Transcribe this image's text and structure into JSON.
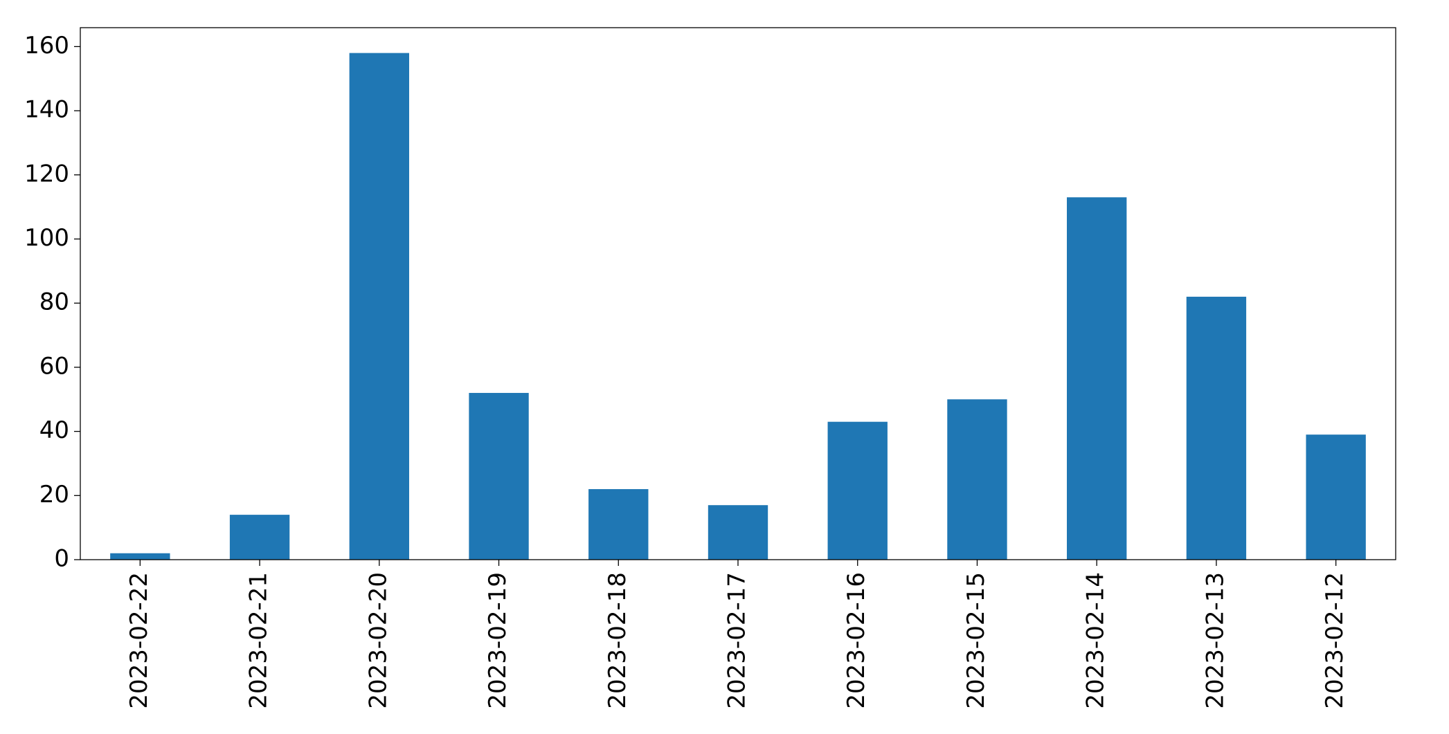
{
  "chart_data": {
    "type": "bar",
    "categories": [
      "2023-02-22",
      "2023-02-21",
      "2023-02-20",
      "2023-02-19",
      "2023-02-18",
      "2023-02-17",
      "2023-02-16",
      "2023-02-15",
      "2023-02-14",
      "2023-02-13",
      "2023-02-12"
    ],
    "values": [
      2,
      14,
      158,
      52,
      22,
      17,
      43,
      50,
      113,
      82,
      39
    ],
    "color": "#1f77b4",
    "ylim": [
      0,
      165.9
    ],
    "yticks": [
      0,
      20,
      40,
      60,
      80,
      100,
      120,
      140,
      160
    ],
    "grid": false
  }
}
